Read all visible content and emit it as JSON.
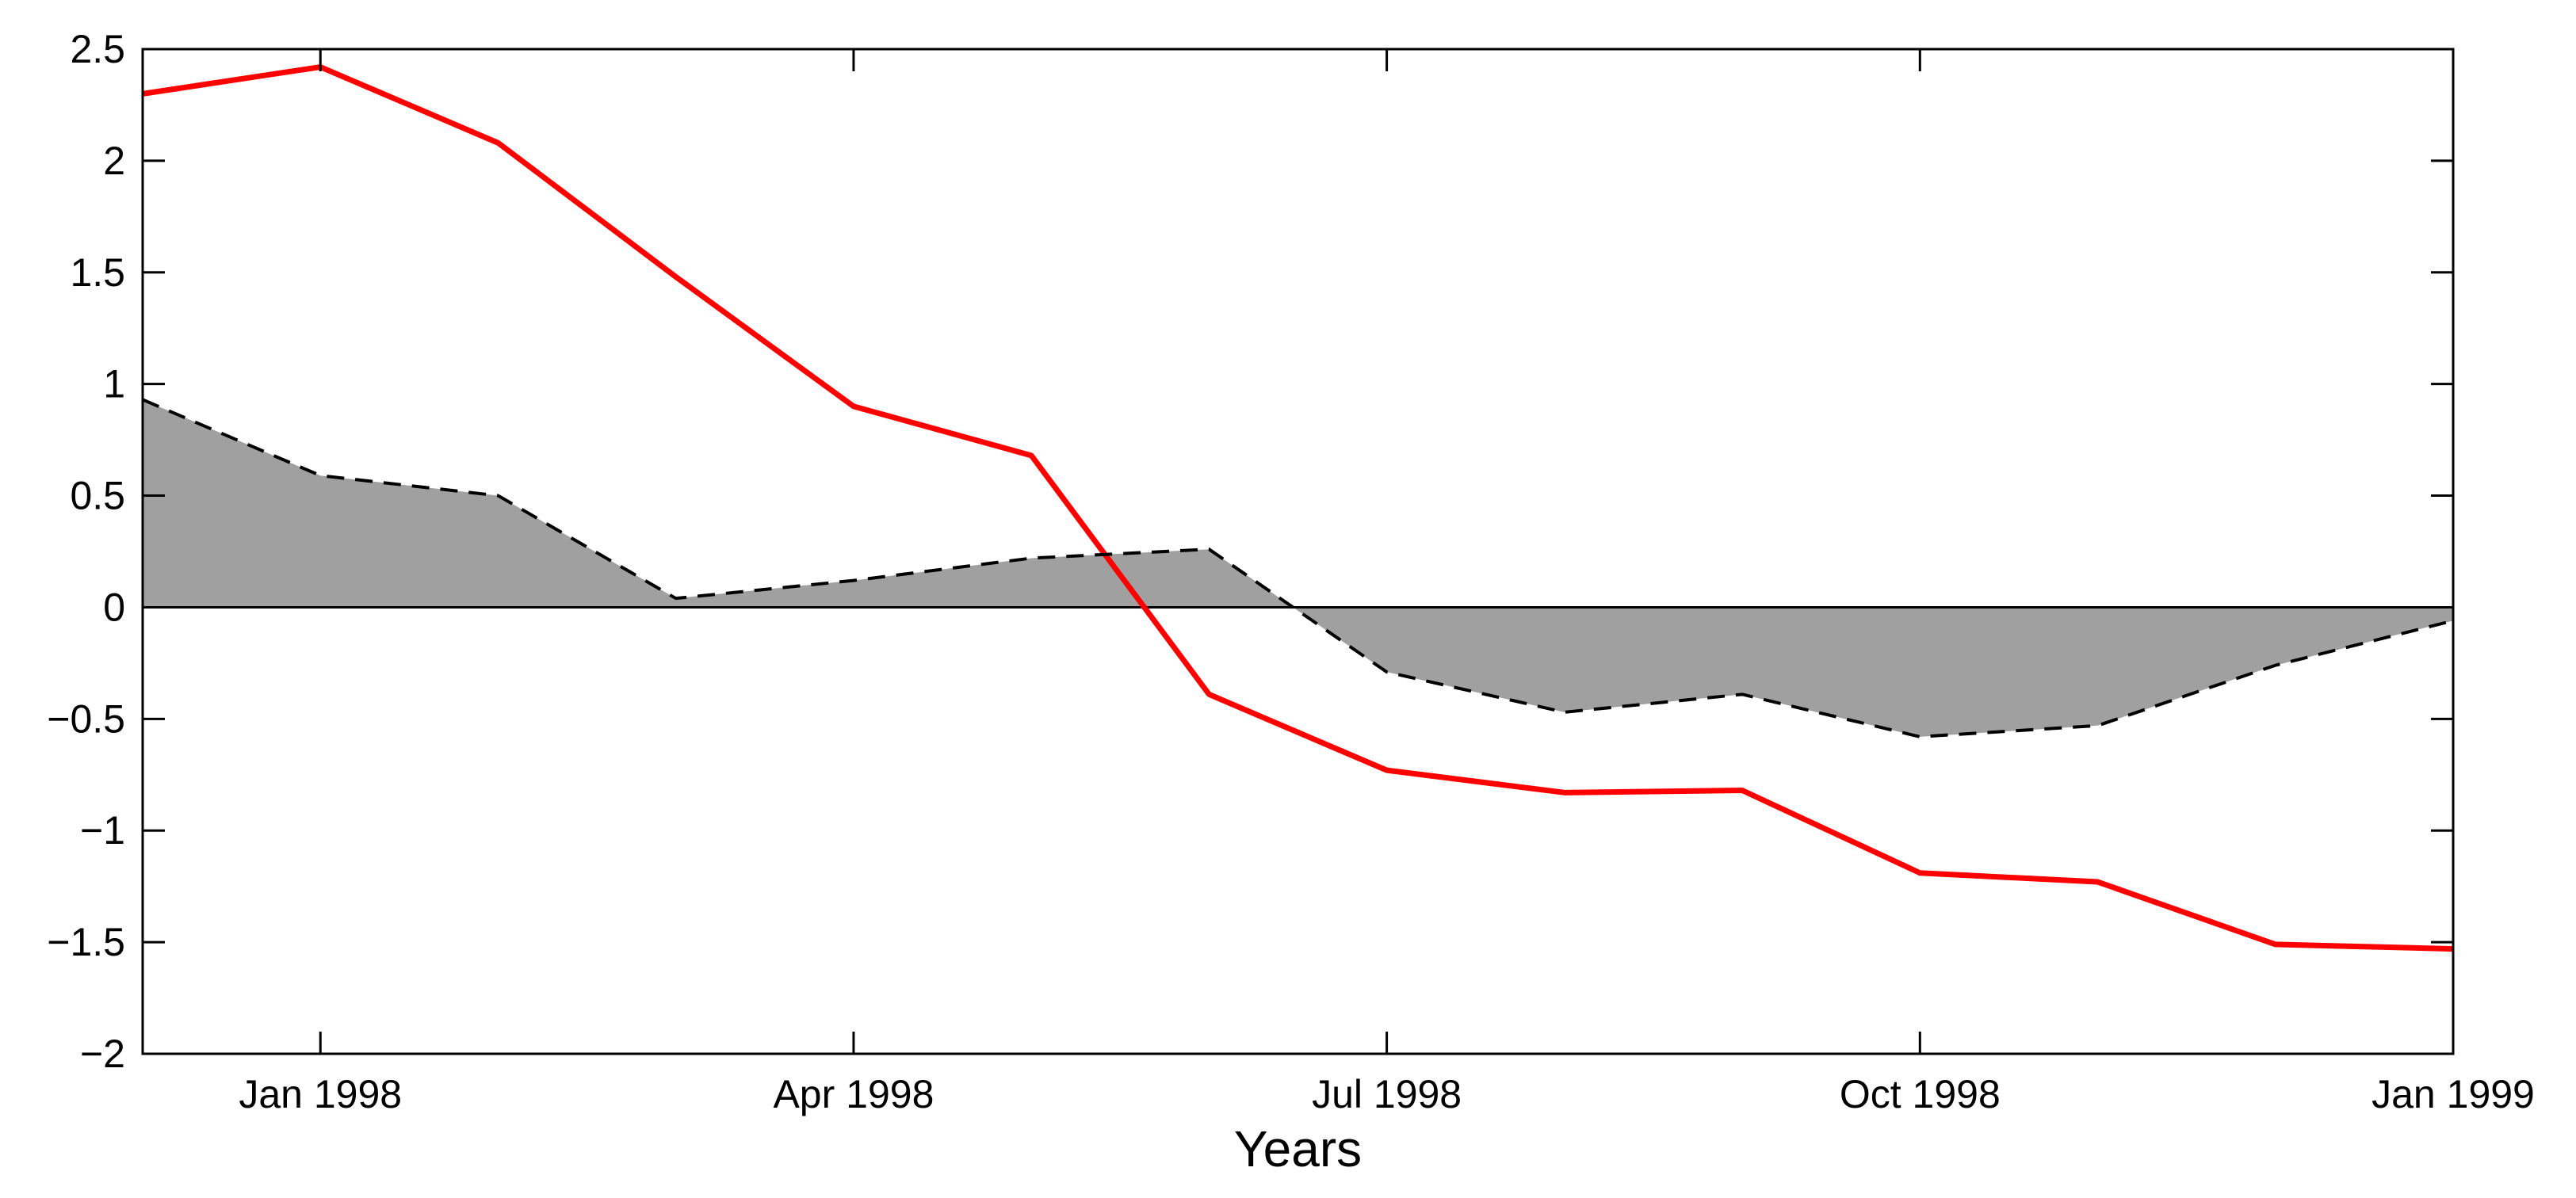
{
  "chart_data": {
    "type": "line",
    "title": "",
    "xlabel": "Years",
    "ylabel": "",
    "x_tick_labels": [
      "Jan 1998",
      "Apr 1998",
      "Jul 1998",
      "Oct 1998",
      "Jan 1999"
    ],
    "y_tick_labels": [
      "2.5",
      "2",
      "1.5",
      "1",
      "0.5",
      "0",
      "−0.5",
      "−1",
      "−1.5",
      "−2"
    ],
    "y_ticks": [
      2.5,
      2,
      1.5,
      1,
      0.5,
      0,
      -0.5,
      -1,
      -1.5,
      -2
    ],
    "ylim": [
      -2,
      2.5
    ],
    "x_ticks_month_index": [
      0,
      3,
      6,
      9,
      12
    ],
    "xlim_month_index": [
      -1,
      12
    ],
    "grid": false,
    "baseline": 0,
    "series": [
      {
        "name": "red-line",
        "style": "solid",
        "color": "#ff0000",
        "x": [
          -1,
          0,
          1,
          2,
          3,
          4,
          5,
          6,
          7,
          8,
          9,
          10,
          11,
          12
        ],
        "values": [
          2.3,
          2.42,
          2.08,
          1.48,
          0.9,
          0.68,
          -0.39,
          -0.73,
          -0.83,
          -0.82,
          -1.19,
          -1.23,
          -1.51,
          -1.53
        ]
      },
      {
        "name": "shaded-dashed",
        "style": "dashed",
        "color": "#000000",
        "fill": "#a0a0a0",
        "x": [
          -1,
          0,
          1,
          2,
          3,
          4,
          5,
          6,
          7,
          8,
          9,
          10,
          11,
          12
        ],
        "values": [
          0.93,
          0.59,
          0.5,
          0.04,
          0.12,
          0.22,
          0.26,
          -0.29,
          -0.47,
          -0.39,
          -0.58,
          -0.53,
          -0.26,
          -0.06
        ]
      }
    ]
  }
}
